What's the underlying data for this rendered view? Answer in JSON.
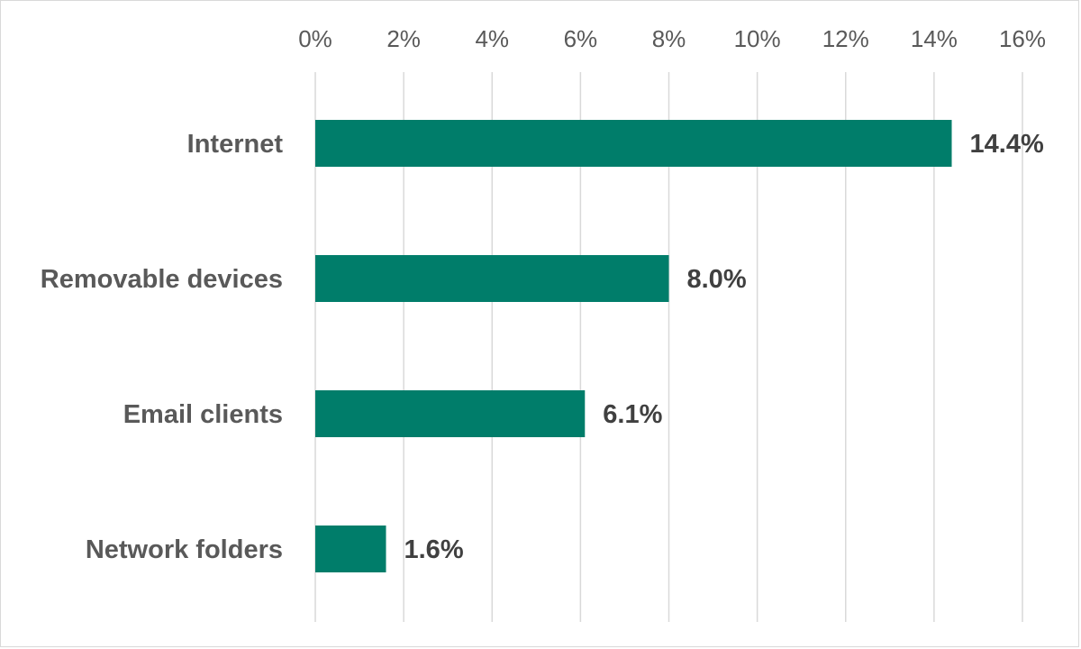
{
  "chart_data": {
    "type": "bar",
    "orientation": "horizontal",
    "categories": [
      "Internet",
      "Removable devices",
      "Email clients",
      "Network folders"
    ],
    "values": [
      14.4,
      8.0,
      6.1,
      1.6
    ],
    "data_labels": [
      "14.4%",
      "8.0%",
      "6.1%",
      "1.6%"
    ],
    "x_ticks": [
      "0%",
      "2%",
      "4%",
      "6%",
      "8%",
      "10%",
      "12%",
      "14%",
      "16%"
    ],
    "xlim": [
      0,
      16
    ],
    "axis_position": "top",
    "grid": true,
    "legend": "none",
    "bar_color": "#007d6a",
    "title": "",
    "xlabel": "",
    "ylabel": ""
  }
}
